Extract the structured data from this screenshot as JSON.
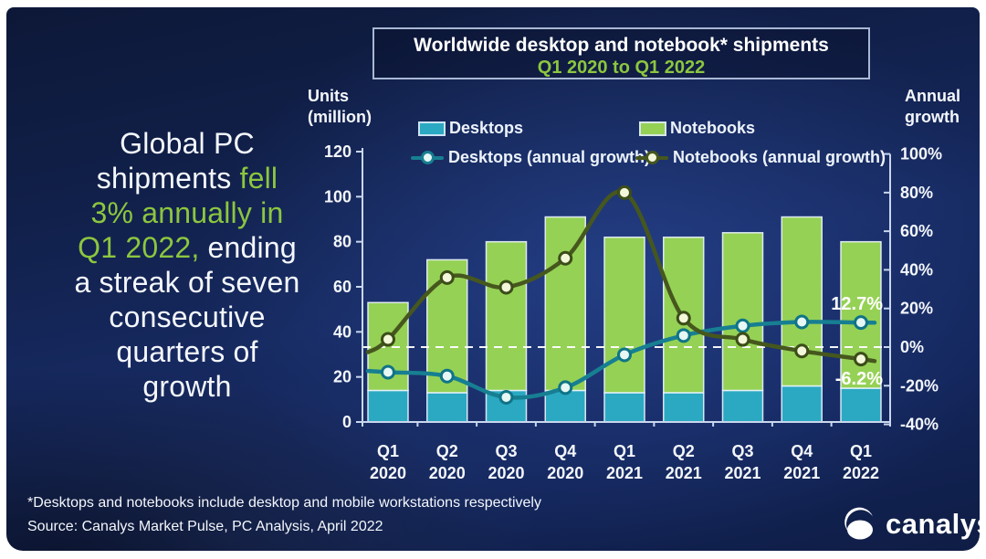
{
  "colors": {
    "background_navy": "#14265C",
    "accent_green": "#8CC63F",
    "text_white": "#F4F7FC",
    "axis_line": "#C9D7EE",
    "zero_line": "#FFFFFF"
  },
  "headline": {
    "lines": [
      {
        "parts": [
          {
            "text": "Global PC",
            "green": false
          }
        ]
      },
      {
        "parts": [
          {
            "text": "shipments ",
            "green": false
          },
          {
            "text": "fell",
            "green": true
          }
        ]
      },
      {
        "parts": [
          {
            "text": "3% annually in",
            "green": true
          }
        ]
      },
      {
        "parts": [
          {
            "text": "Q1 2022,",
            "green": true
          },
          {
            "text": " ending",
            "green": false
          }
        ]
      },
      {
        "parts": [
          {
            "text": "a streak of seven",
            "green": false
          }
        ]
      },
      {
        "parts": [
          {
            "text": "consecutive",
            "green": false
          }
        ]
      },
      {
        "parts": [
          {
            "text": "quarters of",
            "green": false
          }
        ]
      },
      {
        "parts": [
          {
            "text": "growth",
            "green": false
          }
        ]
      }
    ]
  },
  "title": {
    "line1": "Worldwide desktop and notebook* shipments",
    "line2": "Q1 2020 to Q1 2022"
  },
  "axes": {
    "left_title_line1": "Units",
    "left_title_line2": "(million)",
    "right_title_line1": "Annual",
    "right_title_line2": "growth",
    "left_ticks": [
      120,
      100,
      80,
      60,
      40,
      20,
      0
    ],
    "right_ticks": [
      100,
      80,
      60,
      40,
      20,
      0,
      -20,
      -40
    ]
  },
  "legend": {
    "bars": [
      {
        "label": "Desktops",
        "color": "#2BA9C2"
      },
      {
        "label": "Notebooks",
        "color": "#95D155"
      }
    ],
    "lines": [
      {
        "label": "Desktops (annual growth)",
        "line_color": "#177F92",
        "marker_fill": "#E6F7F4"
      },
      {
        "label": "Notebooks (annual growth)",
        "line_color": "#46571E",
        "marker_fill": "#F4F8DB"
      }
    ]
  },
  "chart_data": {
    "type": "combo-stacked-bar-and-line",
    "categories": [
      [
        "Q1",
        "2020"
      ],
      [
        "Q2",
        "2020"
      ],
      [
        "Q3",
        "2020"
      ],
      [
        "Q4",
        "2020"
      ],
      [
        "Q1",
        "2021"
      ],
      [
        "Q2",
        "2021"
      ],
      [
        "Q3",
        "2021"
      ],
      [
        "Q4",
        "2021"
      ],
      [
        "Q1",
        "2022"
      ]
    ],
    "bar_series": [
      {
        "name": "Desktops",
        "color": "#2BA9C2",
        "values": [
          14,
          13,
          14,
          14,
          13,
          13,
          14,
          16,
          15
        ]
      },
      {
        "name": "Notebooks",
        "color": "#95D155",
        "values": [
          39,
          59,
          66,
          77,
          69,
          69,
          70,
          75,
          65
        ]
      }
    ],
    "bar_totals": [
      53,
      72,
      80,
      91,
      82,
      82,
      84,
      91,
      80
    ],
    "line_series": [
      {
        "name": "Desktops (annual growth)",
        "color": "#177F92",
        "marker_fill": "#E6F7F4",
        "marker_ring": "#0F7487",
        "values": [
          -13,
          -15,
          -26,
          -21,
          -4,
          6,
          11,
          13,
          12.7
        ]
      },
      {
        "name": "Notebooks (annual growth)",
        "color": "#46571E",
        "marker_fill": "#F4F8DB",
        "marker_ring": "#3C4D18",
        "values": [
          4,
          36,
          31,
          46,
          80,
          15,
          4,
          -2,
          -6.2
        ]
      }
    ],
    "annotations": [
      {
        "text": "12.7%",
        "series_index": 0
      },
      {
        "text": "-6.2%",
        "series_index": 1
      }
    ],
    "left_axis": {
      "min": 0,
      "max": 120,
      "step": 20,
      "title": "Units (million)"
    },
    "right_axis": {
      "min": -40,
      "max": 100,
      "step": 20,
      "format": "percent",
      "title": "Annual growth"
    },
    "zero_line": "dashed",
    "legend_position": "top",
    "grid": false
  },
  "footnotes": {
    "asterisk": "*Desktops and notebooks include desktop and mobile workstations respectively",
    "source": "Source: Canalys Market Pulse, PC Analysis, April 2022"
  },
  "logo": {
    "text": "canalys"
  }
}
